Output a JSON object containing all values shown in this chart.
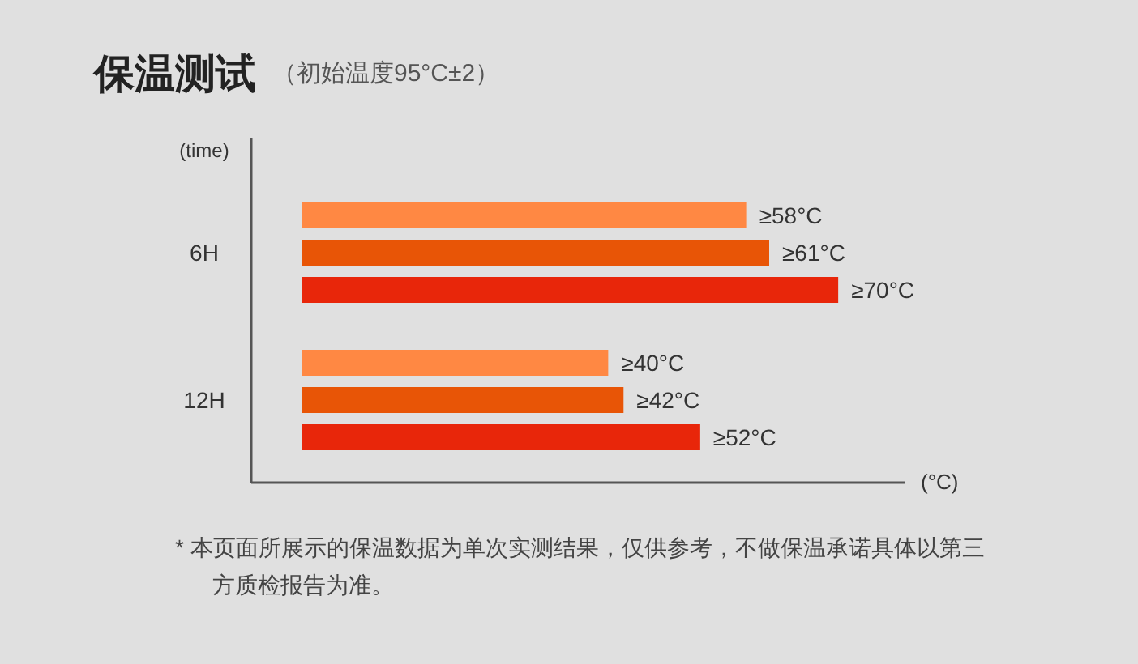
{
  "chart_data": {
    "type": "bar",
    "orientation": "horizontal",
    "title": "保温测试",
    "subtitle": "（初始温度95°C±2）",
    "ylabel": "(time)",
    "xlabel": "(°C)",
    "categories": [
      "6H",
      "12H"
    ],
    "series": [
      {
        "color": "#ff8843",
        "values": [
          58,
          40
        ],
        "value_labels": [
          "≥58°C",
          "≥40°C"
        ]
      },
      {
        "color": "#e85506",
        "values": [
          61,
          42
        ],
        "value_labels": [
          "≥61°C",
          "≥42°C"
        ]
      },
      {
        "color": "#e8260a",
        "values": [
          70,
          52
        ],
        "value_labels": [
          "≥70°C",
          "≥52°C"
        ]
      }
    ],
    "annotations": [
      "*  本页面所展示的保温数据为单次实测结果，仅供参考，不做保温承诺具体以第三方质检报告为准。"
    ]
  }
}
